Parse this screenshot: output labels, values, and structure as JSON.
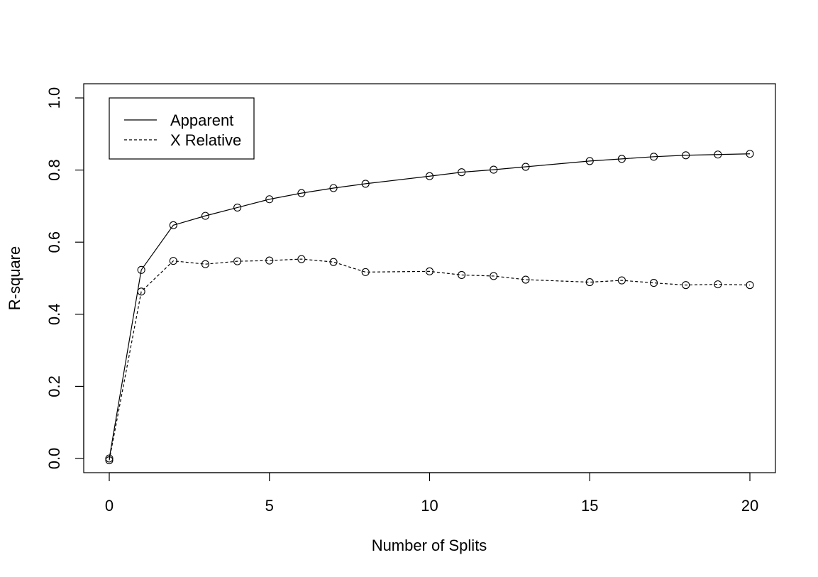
{
  "chart_data": {
    "type": "line",
    "title": "",
    "xlabel": "Number of Splits",
    "ylabel": "R-square",
    "xlim": [
      0,
      20
    ],
    "ylim": [
      0,
      1
    ],
    "xticks": [
      "0",
      "5",
      "10",
      "15",
      "20"
    ],
    "yticks": [
      "0.0",
      "0.2",
      "0.4",
      "0.6",
      "0.8",
      "1.0"
    ],
    "grid": false,
    "legend_position": "top-left",
    "x": [
      0,
      1,
      2,
      3,
      4,
      5,
      6,
      7,
      8,
      10,
      11,
      12,
      13,
      15,
      16,
      17,
      18,
      19,
      20
    ],
    "series": [
      {
        "name": "Apparent",
        "line_style": "solid",
        "marker": "open-circle",
        "values": [
          0.0,
          0.523,
          0.647,
          0.673,
          0.696,
          0.719,
          0.736,
          0.75,
          0.762,
          0.783,
          0.794,
          0.801,
          0.809,
          0.825,
          0.831,
          0.837,
          0.841,
          0.843,
          0.845
        ]
      },
      {
        "name": "X Relative",
        "line_style": "dashed",
        "marker": "open-circle",
        "values": [
          -0.005,
          0.463,
          0.548,
          0.539,
          0.547,
          0.549,
          0.553,
          0.545,
          0.517,
          0.519,
          0.509,
          0.506,
          0.496,
          0.489,
          0.494,
          0.487,
          0.481,
          0.483,
          0.481
        ]
      }
    ],
    "colors": {
      "line": "#000000",
      "background": "#ffffff"
    }
  }
}
